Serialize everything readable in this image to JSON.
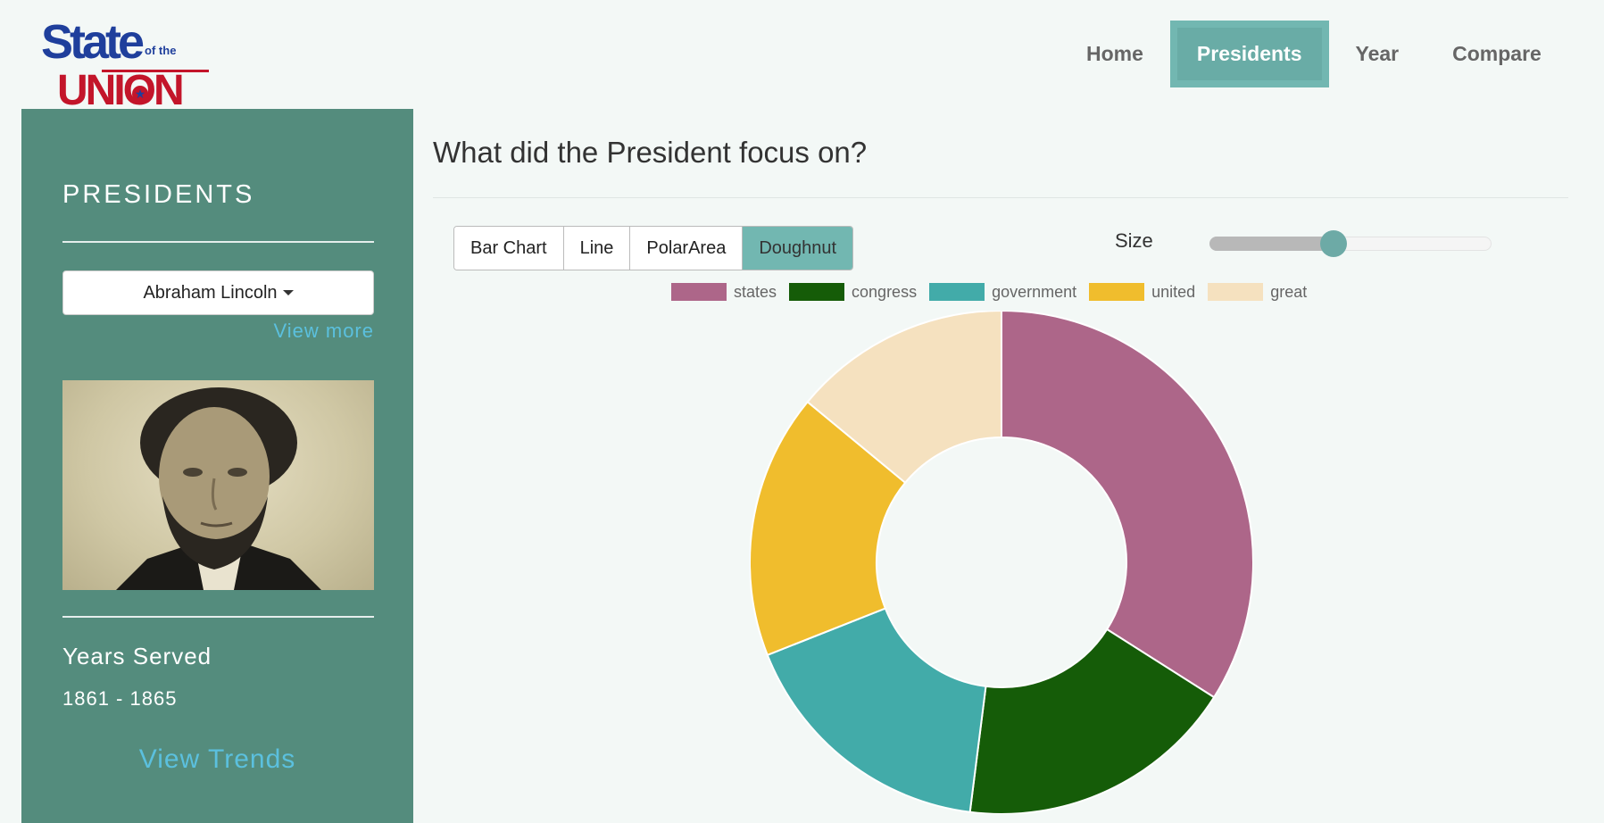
{
  "logo": {
    "line1": "State",
    "small": "of the",
    "line2": "UNION",
    "star": "★"
  },
  "nav": [
    {
      "label": "Home",
      "active": false
    },
    {
      "label": "Presidents",
      "active": true
    },
    {
      "label": "Year",
      "active": false
    },
    {
      "label": "Compare",
      "active": false
    }
  ],
  "sidebar": {
    "title": "PRESIDENTS",
    "selected_president": "Abraham Lincoln",
    "view_more": "View more",
    "years_label": "Years Served",
    "years_value": "1861 - 1865",
    "view_trends": "View Trends"
  },
  "main": {
    "title": "What did the President focus on?",
    "chart_types": [
      {
        "label": "Bar Chart",
        "active": false
      },
      {
        "label": "Line",
        "active": false
      },
      {
        "label": "PolarArea",
        "active": false
      },
      {
        "label": "Doughnut",
        "active": true
      }
    ],
    "size_label": "Size",
    "size_value": 0.44
  },
  "chart_data": {
    "type": "pie",
    "variant": "doughnut",
    "legend_position": "top",
    "categories": [
      "states",
      "congress",
      "government",
      "united",
      "great"
    ],
    "values": [
      34,
      18,
      17,
      17,
      14
    ],
    "colors": [
      "#ad6689",
      "#155c08",
      "#42aba9",
      "#f0bd2d",
      "#f5e1bf"
    ]
  }
}
